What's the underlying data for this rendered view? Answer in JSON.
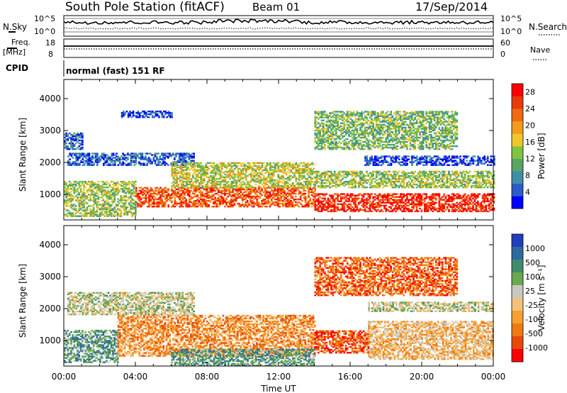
{
  "header": {
    "station": "South Pole Station (fitACF)",
    "beam": "Beam 01",
    "date": "17/Sep/2014"
  },
  "info_panel": {
    "left_top": "N.Sky",
    "right_top": "N.Search",
    "left_freq_line1": "Freq.",
    "left_freq_line2": "[MHz]",
    "right_nave": "Nave",
    "cpid_label": "CPID",
    "cpid_value": "normal (fast) 151 RF",
    "noise_ticks": [
      "10^5",
      "10^0"
    ],
    "freq_ticks": [
      "18",
      "8"
    ],
    "nave_ticks": [
      "60",
      "0"
    ]
  },
  "x_axis": {
    "label": "Time UT",
    "ticks": [
      "00:00",
      "04:00",
      "08:00",
      "12:00",
      "16:00",
      "20:00",
      "00:00"
    ]
  },
  "chart_data": [
    {
      "type": "heatmap",
      "name": "power",
      "xlabel": "Time UT",
      "ylabel": "Slant Range [km]",
      "x_range_hours": [
        0,
        24
      ],
      "ylim": [
        200,
        4600
      ],
      "y_ticks": [
        1000,
        2000,
        3000,
        4000
      ],
      "colorbar": {
        "label": "Power [dB]",
        "ticks": [
          4,
          8,
          12,
          16,
          20,
          24,
          28
        ],
        "range": [
          0,
          30
        ],
        "colors": [
          "#0000ff",
          "#2b5cc9",
          "#3c8fa6",
          "#5aa464",
          "#7fc43f",
          "#f2c62a",
          "#f59a1a",
          "#f06a10",
          "#e83a0a",
          "#ff0000"
        ]
      },
      "echo_regions": [
        {
          "t": [
            0.0,
            4.0
          ],
          "r": [
            300,
            1400
          ],
          "level": 0.45
        },
        {
          "t": [
            0.2,
            7.3
          ],
          "r": [
            1900,
            2300
          ],
          "level": 0.15
        },
        {
          "t": [
            0.0,
            1.0
          ],
          "r": [
            2400,
            2900
          ],
          "level": 0.2
        },
        {
          "t": [
            3.2,
            6.0
          ],
          "r": [
            3400,
            3600
          ],
          "level": 0.12
        },
        {
          "t": [
            4.0,
            14.0
          ],
          "r": [
            600,
            1200
          ],
          "level": 0.8
        },
        {
          "t": [
            6.0,
            14.0
          ],
          "r": [
            1200,
            2000
          ],
          "level": 0.5
        },
        {
          "t": [
            14.0,
            24.0
          ],
          "r": [
            1200,
            1700
          ],
          "level": 0.45
        },
        {
          "t": [
            14.0,
            24.0
          ],
          "r": [
            450,
            1000
          ],
          "level": 0.9
        },
        {
          "t": [
            16.8,
            24.0
          ],
          "r": [
            1900,
            2200
          ],
          "level": 0.12
        },
        {
          "t": [
            14.0,
            22.0
          ],
          "r": [
            2400,
            3600
          ],
          "level": 0.4
        }
      ]
    },
    {
      "type": "heatmap",
      "name": "velocity",
      "xlabel": "Time UT",
      "ylabel": "Slant Range [km]",
      "x_range_hours": [
        0,
        24
      ],
      "ylim": [
        200,
        4600
      ],
      "y_ticks": [
        1000,
        2000,
        3000,
        4000
      ],
      "colorbar": {
        "label": "Velocity [m s⁻¹]",
        "ticks": [
          1000,
          500,
          100,
          25,
          -25,
          -100,
          -500,
          -1000
        ],
        "colors": [
          "#1f3fbf",
          "#2f6aa0",
          "#3f8c6a",
          "#6aa84f",
          "#c8c8c0",
          "#f2c27a",
          "#f5a030",
          "#f07a10",
          "#e84a0a",
          "#ff0000"
        ]
      },
      "echo_regions": [
        {
          "t": [
            0.0,
            3.0
          ],
          "r": [
            300,
            1300
          ],
          "level": 0.3
        },
        {
          "t": [
            0.2,
            7.3
          ],
          "r": [
            1800,
            2500
          ],
          "level": 0.45
        },
        {
          "t": [
            3.0,
            14.0
          ],
          "r": [
            500,
            1800
          ],
          "level": 0.7
        },
        {
          "t": [
            14.0,
            17.0
          ],
          "r": [
            600,
            1300
          ],
          "level": 0.85
        },
        {
          "t": [
            17.0,
            24.0
          ],
          "r": [
            400,
            1600
          ],
          "level": 0.6
        },
        {
          "t": [
            6.0,
            14.0
          ],
          "r": [
            200,
            700
          ],
          "level": 0.3
        },
        {
          "t": [
            17.0,
            24.0
          ],
          "r": [
            1900,
            2200
          ],
          "level": 0.45
        },
        {
          "t": [
            14.0,
            22.0
          ],
          "r": [
            2400,
            3600
          ],
          "level": 0.8
        }
      ]
    }
  ]
}
